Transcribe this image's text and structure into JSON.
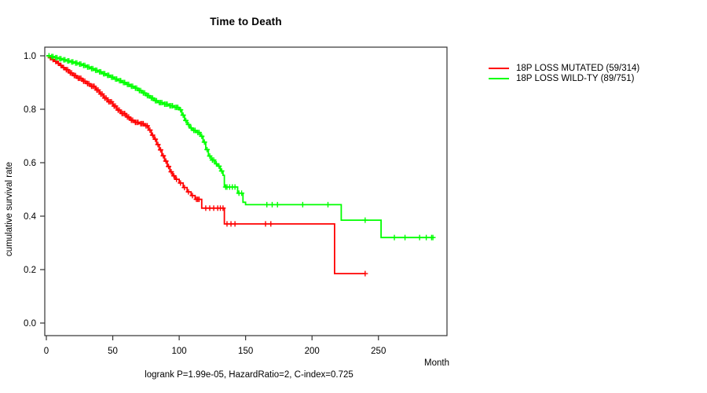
{
  "title": "Time to Death",
  "y_axis_label": "cumulative survival rate",
  "x_axis_label": "Month",
  "footer": "logrank P=1.99e-05, HazardRatio=2, C-index=0.725",
  "colors": {
    "mutated": "#ff0000",
    "wild_type": "#00ff00",
    "axis": "#333333"
  },
  "legend": [
    {
      "label": "18P LOSS MUTATED (59/314)",
      "color": "#ff0000"
    },
    {
      "label": "18P LOSS WILD-TY (89/751)",
      "color": "#00ff00"
    }
  ],
  "chart_data": {
    "type": "line",
    "subtype": "kaplan-meier-step",
    "title": "Time to Death",
    "xlabel": "Month",
    "ylabel": "cumulative survival rate",
    "xlim": [
      0,
      305
    ],
    "ylim": [
      0.0,
      1.0
    ],
    "x_ticks": [
      0,
      50,
      100,
      150,
      200,
      250
    ],
    "y_ticks": [
      0.0,
      0.2,
      0.4,
      0.6,
      0.8,
      1.0
    ],
    "grid": false,
    "legend_position": "top-right-outside",
    "censor_marker": "plus",
    "series": [
      {
        "name": "18P LOSS MUTATED (59/314)",
        "color": "#ff0000",
        "end_month": 240,
        "points": [
          [
            0,
            1.0
          ],
          [
            2,
            0.993
          ],
          [
            4,
            0.986
          ],
          [
            6,
            0.979
          ],
          [
            8,
            0.972
          ],
          [
            10,
            0.964
          ],
          [
            12,
            0.956
          ],
          [
            14,
            0.948
          ],
          [
            17,
            0.936
          ],
          [
            20,
            0.926
          ],
          [
            23,
            0.916
          ],
          [
            27,
            0.905
          ],
          [
            30,
            0.896
          ],
          [
            33,
            0.886
          ],
          [
            37,
            0.872
          ],
          [
            40,
            0.857
          ],
          [
            43,
            0.842
          ],
          [
            46,
            0.828
          ],
          [
            50,
            0.812
          ],
          [
            53,
            0.797
          ],
          [
            56,
            0.784
          ],
          [
            60,
            0.771
          ],
          [
            63,
            0.759
          ],
          [
            66,
            0.751
          ],
          [
            70,
            0.746
          ],
          [
            74,
            0.738
          ],
          [
            77,
            0.722
          ],
          [
            79,
            0.703
          ],
          [
            81,
            0.688
          ],
          [
            83,
            0.668
          ],
          [
            85,
            0.648
          ],
          [
            87,
            0.626
          ],
          [
            89,
            0.606
          ],
          [
            91,
            0.586
          ],
          [
            93,
            0.566
          ],
          [
            95,
            0.551
          ],
          [
            97,
            0.538
          ],
          [
            100,
            0.524
          ],
          [
            103,
            0.507
          ],
          [
            106,
            0.491
          ],
          [
            109,
            0.477
          ],
          [
            112,
            0.463
          ],
          [
            117,
            0.43
          ],
          [
            134,
            0.371
          ],
          [
            217,
            0.185
          ]
        ],
        "censor_months": [
          3,
          5,
          7,
          9,
          11,
          13,
          15,
          16,
          18,
          19,
          21,
          22,
          24,
          25,
          26,
          28,
          29,
          31,
          32,
          34,
          35,
          36,
          38,
          39,
          41,
          42,
          44,
          45,
          47,
          48,
          49,
          51,
          52,
          54,
          55,
          57,
          58,
          59,
          61,
          62,
          64,
          65,
          67,
          68,
          69,
          71,
          72,
          73,
          75,
          76,
          78,
          80,
          82,
          84,
          86,
          88,
          90,
          92,
          94,
          96,
          98,
          101,
          104,
          107,
          110,
          113,
          114,
          115,
          120,
          123,
          126,
          129,
          131,
          133,
          136,
          139,
          142,
          165,
          169,
          240
        ]
      },
      {
        "name": "18P LOSS WILD-TY (89/751)",
        "color": "#00ff00",
        "end_month": 292,
        "points": [
          [
            0,
            1.0
          ],
          [
            3,
            0.997
          ],
          [
            6,
            0.993
          ],
          [
            9,
            0.989
          ],
          [
            12,
            0.985
          ],
          [
            15,
            0.981
          ],
          [
            18,
            0.977
          ],
          [
            21,
            0.973
          ],
          [
            24,
            0.969
          ],
          [
            27,
            0.964
          ],
          [
            30,
            0.958
          ],
          [
            33,
            0.952
          ],
          [
            36,
            0.946
          ],
          [
            39,
            0.94
          ],
          [
            42,
            0.933
          ],
          [
            45,
            0.927
          ],
          [
            48,
            0.92
          ],
          [
            51,
            0.913
          ],
          [
            54,
            0.907
          ],
          [
            57,
            0.9
          ],
          [
            60,
            0.893
          ],
          [
            63,
            0.886
          ],
          [
            66,
            0.879
          ],
          [
            69,
            0.87
          ],
          [
            72,
            0.861
          ],
          [
            75,
            0.851
          ],
          [
            78,
            0.842
          ],
          [
            81,
            0.832
          ],
          [
            84,
            0.825
          ],
          [
            88,
            0.819
          ],
          [
            92,
            0.813
          ],
          [
            96,
            0.807
          ],
          [
            100,
            0.798
          ],
          [
            102,
            0.778
          ],
          [
            104,
            0.758
          ],
          [
            106,
            0.743
          ],
          [
            108,
            0.73
          ],
          [
            110,
            0.721
          ],
          [
            113,
            0.713
          ],
          [
            116,
            0.699
          ],
          [
            118,
            0.677
          ],
          [
            120,
            0.649
          ],
          [
            122,
            0.625
          ],
          [
            124,
            0.61
          ],
          [
            127,
            0.596
          ],
          [
            129,
            0.587
          ],
          [
            131,
            0.569
          ],
          [
            133,
            0.553
          ],
          [
            134,
            0.509
          ],
          [
            144,
            0.486
          ],
          [
            148,
            0.452
          ],
          [
            150,
            0.443
          ],
          [
            222,
            0.385
          ],
          [
            252,
            0.32
          ]
        ],
        "censor_months": [
          2,
          4,
          5,
          7,
          8,
          10,
          11,
          13,
          14,
          16,
          17,
          19,
          20,
          22,
          23,
          25,
          26,
          28,
          29,
          31,
          32,
          34,
          35,
          37,
          38,
          40,
          41,
          43,
          44,
          46,
          47,
          49,
          50,
          52,
          53,
          55,
          56,
          58,
          59,
          61,
          62,
          64,
          65,
          67,
          68,
          70,
          71,
          73,
          74,
          76,
          77,
          79,
          80,
          82,
          83,
          85,
          86,
          87,
          89,
          90,
          91,
          93,
          94,
          95,
          97,
          98,
          99,
          101,
          103,
          105,
          107,
          109,
          111,
          112,
          114,
          115,
          117,
          119,
          121,
          123,
          125,
          126,
          128,
          130,
          132,
          135,
          136,
          138,
          140,
          142,
          145,
          147,
          166,
          170,
          174,
          193,
          212,
          240,
          262,
          270,
          281,
          286,
          290,
          291
        ]
      }
    ]
  }
}
